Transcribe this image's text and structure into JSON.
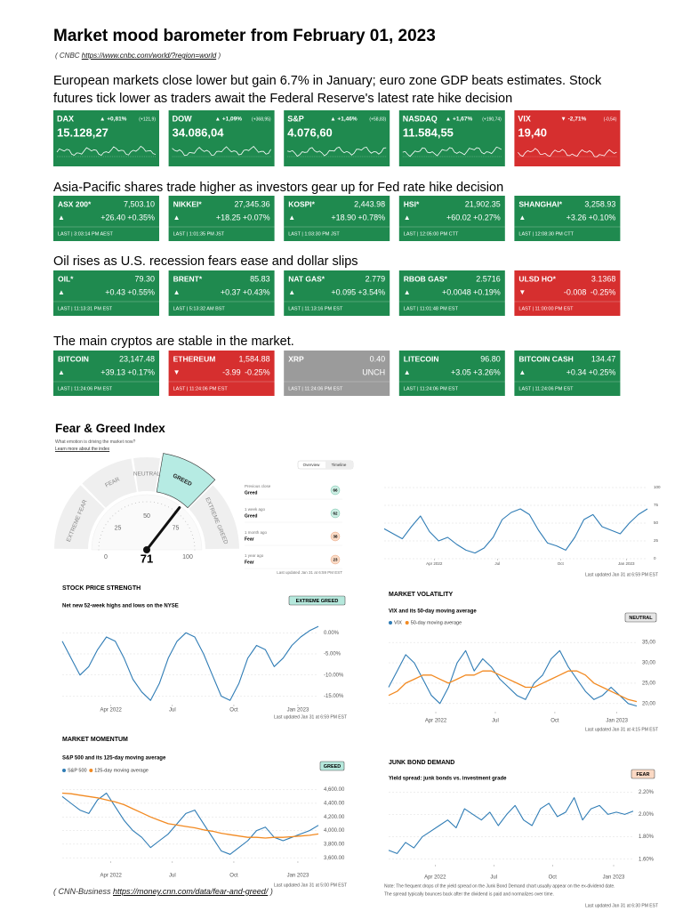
{
  "header": {
    "title": "Market mood barometer from February 01, 2023",
    "source": {
      "before": "( CNBC",
      "url": "https://www.cnbc.com/world/?region=world",
      "after": ")"
    }
  },
  "sections": [
    {
      "headline": "European markets close lower but gain 6.7% in January; euro zone GDP beats estimates. Stock futures tick lower as traders await the Federal Reserve's latest rate hike decision",
      "tiles": [
        {
          "name": "DAX",
          "change": "▲ +0,81%",
          "change_detail": "(+121,9)",
          "price": "15.128,27",
          "color": "#1f8a4f"
        },
        {
          "name": "DOW",
          "change": "▲ +1,09%",
          "change_detail": "(+368,95)",
          "price": "34.086,04",
          "color": "#1f8a4f"
        },
        {
          "name": "S&P",
          "change": "▲ +1,46%",
          "change_detail": "(+58,83)",
          "price": "4.076,60",
          "color": "#1f8a4f"
        },
        {
          "name": "NASDAQ",
          "change": "▲ +1,67%",
          "change_detail": "(+190,74)",
          "price": "11.584,55",
          "color": "#1f8a4f"
        },
        {
          "name": "VIX",
          "change": "▼ -2,71%",
          "change_detail": "(-0,54)",
          "price": "19,40",
          "color": "#d62f2f"
        }
      ]
    },
    {
      "headline": "Asia-Pacific shares trade higher as investors gear up for Fed rate hike decision",
      "tiles": [
        {
          "name": "ASX 200*",
          "price": "7,503.10",
          "arrow": "▲",
          "change": "+26.40",
          "change_pct": "+0.35%",
          "last": "LAST | 3:03:14 PM AEST",
          "color": "#1f8a4f"
        },
        {
          "name": "NIKKEI*",
          "price": "27,345.36",
          "arrow": "▲",
          "change": "+18.25",
          "change_pct": "+0.07%",
          "last": "LAST | 1:01:35 PM JST",
          "color": "#1f8a4f"
        },
        {
          "name": "KOSPI*",
          "price": "2,443.98",
          "arrow": "▲",
          "change": "+18.90",
          "change_pct": "+0.78%",
          "last": "LAST | 1:03:30 PM JST",
          "color": "#1f8a4f"
        },
        {
          "name": "HSI*",
          "price": "21,902.35",
          "arrow": "▲",
          "change": "+60.02",
          "change_pct": "+0.27%",
          "last": "LAST | 12:05:00 PM CTT",
          "color": "#1f8a4f"
        },
        {
          "name": "SHANGHAI*",
          "price": "3,258.93",
          "arrow": "▲",
          "change": "+3.26",
          "change_pct": "+0.10%",
          "last": "LAST | 12:08:30 PM CTT",
          "color": "#1f8a4f"
        }
      ]
    },
    {
      "headline": "Oil rises as U.S. recession fears ease and dollar slips",
      "tiles": [
        {
          "name": "OIL*",
          "price": "79.30",
          "arrow": "▲",
          "change": "+0.43",
          "change_pct": "+0.55%",
          "last": "LAST | 11:13:31 PM EST",
          "color": "#1f8a4f"
        },
        {
          "name": "BRENT*",
          "price": "85.83",
          "arrow": "▲",
          "change": "+0.37",
          "change_pct": "+0.43%",
          "last": "LAST | 5:13:32 AM BST",
          "color": "#1f8a4f"
        },
        {
          "name": "NAT GAS*",
          "price": "2.779",
          "arrow": "▲",
          "change": "+0.095",
          "change_pct": "+3.54%",
          "last": "LAST | 11:13:16 PM EST",
          "color": "#1f8a4f"
        },
        {
          "name": "RBOB GAS*",
          "price": "2.5716",
          "arrow": "▲",
          "change": "+0.0048",
          "change_pct": "+0.19%",
          "last": "LAST | 11:01:48 PM EST",
          "color": "#1f8a4f"
        },
        {
          "name": "ULSD HO*",
          "price": "3.1368",
          "arrow": "▼",
          "change": "-0.008",
          "change_pct": "-0.25%",
          "last": "LAST | 11:00:00 PM EST",
          "color": "#d62f2f"
        }
      ]
    },
    {
      "headline": "The main cryptos are stable in the market.",
      "tiles": [
        {
          "name": "BITCOIN",
          "price": "23,147.48",
          "arrow": "▲",
          "change": "+39.13",
          "change_pct": "+0.17%",
          "last": "LAST | 11:24:06 PM EST",
          "color": "#1f8a4f"
        },
        {
          "name": "ETHEREUM",
          "price": "1,584.88",
          "arrow": "▼",
          "change": "-3.99",
          "change_pct": "-0.25%",
          "last": "LAST | 11:24:06 PM EST",
          "color": "#d62f2f"
        },
        {
          "name": "XRP",
          "price": "0.40",
          "change": "UNCH",
          "last": "LAST | 11:24:06 PM EST",
          "color": "#9b9b9b"
        },
        {
          "name": "LITECOIN",
          "price": "96.80",
          "arrow": "▲",
          "change": "+3.05",
          "change_pct": "+3.26%",
          "last": "LAST | 11:24:06 PM EST",
          "color": "#1f8a4f"
        },
        {
          "name": "BITCOIN CASH",
          "price": "134.47",
          "arrow": "▲",
          "change": "+0.34",
          "change_pct": "+0.25%",
          "last": "LAST | 11:24:06 PM EST",
          "color": "#1f8a4f"
        }
      ]
    }
  ],
  "fear_greed": {
    "title": "Fear & Greed Index",
    "question": "What emotion is driving the market now?",
    "learn_more": "Learn more about the index",
    "tabs": [
      "Overview",
      "Timeline"
    ],
    "gauge": {
      "value": 71,
      "range": [
        0,
        100
      ],
      "ticks": [
        0,
        25,
        50,
        75,
        100
      ],
      "zones": [
        "EXTREME FEAR",
        "FEAR",
        "NEUTRAL",
        "GREED",
        "EXTREME GREED"
      ]
    },
    "history": [
      {
        "label": "Previous close",
        "rating": "Greed",
        "value": 66
      },
      {
        "label": "1 week ago",
        "rating": "Greed",
        "value": 62
      },
      {
        "label": "1 month ago",
        "rating": "Fear",
        "value": 38
      },
      {
        "label": "1 year ago",
        "rating": "Fear",
        "value": 23
      }
    ],
    "updated": "Last updated Jan 31 at 6:59 PM EST",
    "charts": [
      {
        "type": "line",
        "x_labels": [
          "Apr 2022",
          "Jul",
          "Oct",
          "Jan 2023"
        ],
        "ylim": [
          0,
          100
        ],
        "yticks": [
          0,
          25,
          50,
          75,
          100
        ],
        "series": [
          {
            "color": "#2f7cb5",
            "values": [
              42,
              35,
              28,
              45,
              60,
              38,
              25,
              30,
              20,
              12,
              8,
              15,
              30,
              55,
              65,
              70,
              62,
              40,
              22,
              18,
              12,
              30,
              55,
              62,
              45,
              40,
              35,
              50,
              62,
              70
            ]
          }
        ],
        "updated": "Last updated Jan 31 at 6:59 PM EST"
      },
      {
        "type": "line",
        "title": "STOCK PRICE STRENGTH",
        "subtitle": "Net new 52-week highs and lows on the NYSE",
        "badge": "EXTREME GREED",
        "badge_color": "#b5e8dc",
        "x_labels": [
          "Apr 2022",
          "Jul",
          "Oct",
          "Jan 2023"
        ],
        "ylim": [
          -17,
          3
        ],
        "yticks": [
          {
            "value": 0,
            "label": "0.00%"
          },
          {
            "value": -5,
            "label": "-5.00%"
          },
          {
            "value": -10,
            "label": "-10.00%"
          },
          {
            "value": -15,
            "label": "-15.00%"
          }
        ],
        "series": [
          {
            "color": "#2f7cb5",
            "values": [
              -2,
              -6,
              -10,
              -8,
              -4,
              -1,
              -2,
              -6,
              -11,
              -14,
              -16,
              -12,
              -6,
              -2,
              0,
              -1,
              -5,
              -10,
              -15,
              -16,
              -12,
              -6,
              -3,
              -4,
              -8,
              -6,
              -3,
              -1,
              0.5,
              1.5
            ]
          }
        ],
        "updated": "Last updated Jan 31 at 6:59 PM EST"
      },
      {
        "type": "line",
        "title": "MARKET VOLATILITY",
        "subtitle": "VIX and its 50-day moving average",
        "badge": "NEUTRAL",
        "badge_color": "#e6e6e6",
        "x_labels": [
          "Apr 2022",
          "Jul",
          "Oct",
          "Jan 2023"
        ],
        "ylim": [
          18,
          37
        ],
        "yticks": [
          {
            "value": 20,
            "label": "20,00"
          },
          {
            "value": 25,
            "label": "25,00"
          },
          {
            "value": 30,
            "label": "30,00"
          },
          {
            "value": 35,
            "label": "35,00"
          }
        ],
        "series": [
          {
            "name": "VIX",
            "color": "#2f7cb5",
            "values": [
              24,
              28,
              32,
              30,
              26,
              22,
              20,
              24,
              30,
              33,
              28,
              31,
              29,
              26,
              24,
              22,
              21,
              25,
              27,
              31,
              33,
              29,
              26,
              23,
              21,
              22,
              24,
              22,
              20,
              19.4
            ]
          },
          {
            "name": "50-day moving average",
            "color": "#f28a22",
            "values": [
              22,
              23,
              25,
              26,
              27,
              27,
              26,
              25,
              26,
              27,
              27,
              28,
              28,
              27,
              26,
              25,
              24,
              24,
              25,
              26,
              27,
              28,
              28,
              27,
              25,
              24,
              23,
              22,
              21,
              20.5
            ]
          }
        ],
        "updated": "Last updated Jan 31 at 4:15 PM EST"
      },
      {
        "type": "line",
        "title": "MARKET MOMENTUM",
        "subtitle": "S&P 500 and its 125-day moving average",
        "badge": "GREED",
        "badge_color": "#b5e8dc",
        "x_labels": [
          "Apr 2022",
          "Jul",
          "Oct",
          "Jan 2023"
        ],
        "ylim": [
          3550,
          4700
        ],
        "yticks": [
          {
            "value": 3600,
            "label": "3,600.00"
          },
          {
            "value": 3800,
            "label": "3,800.00"
          },
          {
            "value": 4000,
            "label": "4,000.00"
          },
          {
            "value": 4200,
            "label": "4,200.00"
          },
          {
            "value": 4400,
            "label": "4,400.00"
          },
          {
            "value": 4600,
            "label": "4,600.00"
          }
        ],
        "series": [
          {
            "name": "S&P 500",
            "color": "#2f7cb5",
            "values": [
              4500,
              4400,
              4300,
              4250,
              4450,
              4550,
              4350,
              4150,
              4000,
              3900,
              3750,
              3850,
              3950,
              4100,
              4250,
              4300,
              4100,
              3900,
              3700,
              3650,
              3750,
              3850,
              4000,
              4050,
              3900,
              3850,
              3900,
              3950,
              4000,
              4076
            ]
          },
          {
            "name": "125-day moving average",
            "color": "#f28a22",
            "values": [
              4550,
              4540,
              4520,
              4500,
              4480,
              4450,
              4420,
              4380,
              4320,
              4260,
              4200,
              4150,
              4100,
              4080,
              4060,
              4040,
              4010,
              3990,
              3960,
              3940,
              3920,
              3900,
              3900,
              3890,
              3900,
              3900,
              3910,
              3920,
              3930,
              3950
            ]
          }
        ],
        "updated": "Last updated Jan 31 at 5:00 PM EST"
      },
      {
        "type": "line",
        "title": "JUNK BOND DEMAND",
        "subtitle": "Yield spread: junk bonds vs. investment grade",
        "badge": "FEAR",
        "badge_color": "#fbd9c4",
        "x_labels": [
          "Apr 2022",
          "Jul",
          "Oct",
          "Jan 2023"
        ],
        "ylim": [
          1.55,
          2.25
        ],
        "yticks": [
          {
            "value": 1.6,
            "label": "1.60%"
          },
          {
            "value": 1.8,
            "label": "1.80%"
          },
          {
            "value": 2.0,
            "label": "2.00%"
          },
          {
            "value": 2.2,
            "label": "2.20%"
          }
        ],
        "series": [
          {
            "color": "#2f7cb5",
            "values": [
              1.68,
              1.65,
              1.75,
              1.7,
              1.8,
              1.85,
              1.9,
              1.95,
              1.88,
              2.05,
              2.0,
              1.95,
              2.02,
              1.9,
              2.0,
              2.08,
              1.95,
              1.9,
              2.05,
              2.1,
              1.98,
              2.02,
              2.15,
              1.95,
              2.05,
              2.08,
              2.0,
              2.02,
              2.0,
              2.03
            ]
          }
        ],
        "note": [
          "Note: The frequent drops of the yield spread on the Junk Bond Demand chart usually appear on the ex-dividend date.",
          "The spread typically bounces back after the dividend is paid and normalizes over time."
        ],
        "updated": "Last updated Jan 31 at 6:30 PM EST"
      }
    ]
  },
  "footer": {
    "before": "( CNN-Business",
    "url": "https://money.cnn.com/data/fear-and-greed/",
    "after": ")"
  }
}
